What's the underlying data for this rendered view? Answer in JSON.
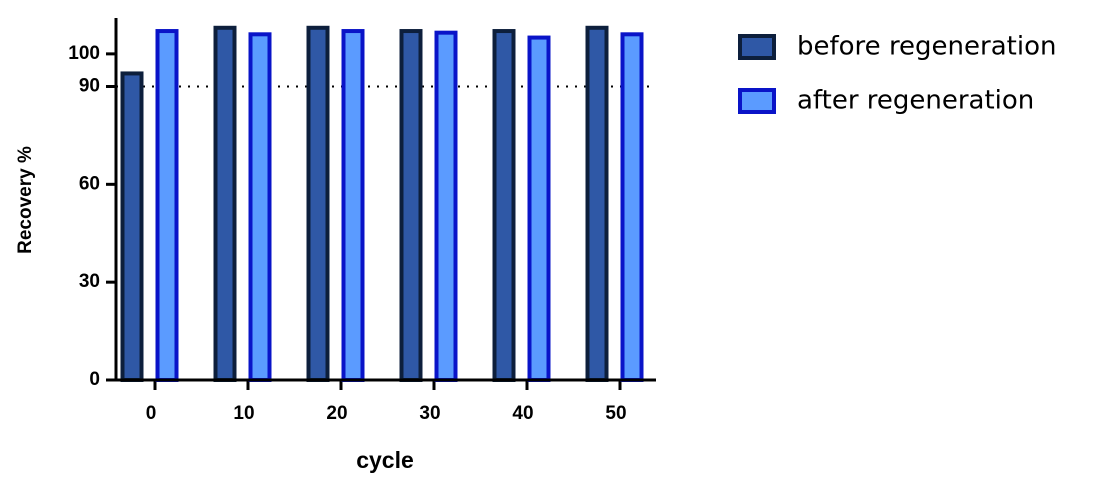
{
  "chart_data": {
    "type": "bar",
    "x_label": "cycle",
    "y_label": "Recovery %",
    "categories": [
      "0",
      "10",
      "20",
      "30",
      "40",
      "50"
    ],
    "series": [
      {
        "name": "before regeneration",
        "color": "#2f58a6",
        "edge": "#0d1f3c",
        "values": [
          94,
          108,
          108,
          107,
          107,
          108
        ]
      },
      {
        "name": "after regeneration",
        "color": "#5b9bff",
        "edge": "#0a14c8",
        "values": [
          107,
          106,
          107,
          106.5,
          105,
          106
        ]
      }
    ],
    "ylim": [
      0,
      111
    ],
    "yticks": [
      0,
      30,
      60,
      90,
      100
    ],
    "reference_line": 90,
    "legend": "right"
  }
}
